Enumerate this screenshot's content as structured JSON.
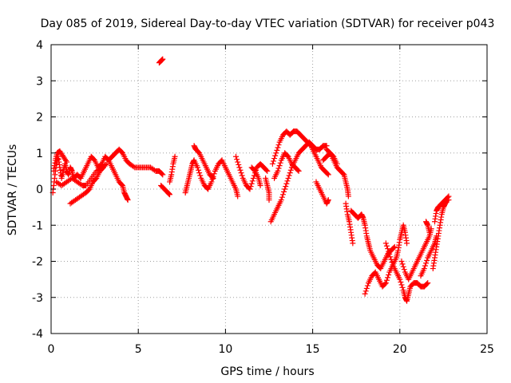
{
  "chart_data": {
    "type": "scatter",
    "title": "Day 085 of 2019, Sidereal Day-to-day VTEC variation (SDTVAR) for receiver p043",
    "xlabel": "GPS time / hours",
    "ylabel": "SDTVAR / TECUs",
    "xlim": [
      0,
      25
    ],
    "ylim": [
      -4,
      4
    ],
    "xticks": [
      0,
      5,
      10,
      15,
      20,
      25
    ],
    "yticks": [
      -4,
      -3,
      -2,
      -1,
      0,
      1,
      2,
      3,
      4
    ],
    "xtick_labels": [
      "0",
      "5",
      "10",
      "15",
      "20",
      "25"
    ],
    "ytick_labels": [
      "-4",
      "-3",
      "-2",
      "-1",
      "0",
      "1",
      "2",
      "3",
      "4"
    ],
    "grid": true,
    "marker": "+",
    "color": "#ff0000",
    "series": [
      {
        "name": "SDTVAR",
        "tracks": [
          [
            [
              0.1,
              -0.1
            ],
            [
              0.2,
              0.3
            ],
            [
              0.3,
              0.7
            ],
            [
              0.4,
              0.9
            ],
            [
              0.5,
              0.6
            ],
            [
              0.6,
              0.3
            ],
            [
              0.7,
              0.5
            ],
            [
              0.8,
              0.7
            ],
            [
              0.9,
              0.5
            ],
            [
              1.0,
              0.4
            ],
            [
              1.1,
              0.6
            ],
            [
              1.2,
              0.5
            ],
            [
              1.3,
              0.3
            ],
            [
              1.5,
              0.4
            ],
            [
              1.7,
              0.3
            ],
            [
              1.9,
              0.5
            ],
            [
              2.1,
              0.7
            ],
            [
              2.3,
              0.9
            ],
            [
              2.5,
              0.8
            ],
            [
              2.7,
              0.6
            ],
            [
              2.9,
              0.7
            ],
            [
              3.1,
              0.9
            ],
            [
              3.3,
              0.8
            ],
            [
              3.5,
              0.9
            ],
            [
              3.7,
              1.0
            ],
            [
              3.9,
              1.1
            ],
            [
              4.1,
              1.0
            ],
            [
              4.3,
              0.8
            ],
            [
              4.5,
              0.7
            ],
            [
              4.8,
              0.6
            ],
            [
              5.1,
              0.6
            ],
            [
              5.4,
              0.6
            ],
            [
              5.7,
              0.6
            ],
            [
              6.0,
              0.5
            ],
            [
              6.2,
              0.5
            ],
            [
              6.4,
              0.4
            ]
          ],
          [
            [
              0.3,
              0.2
            ],
            [
              0.6,
              0.1
            ],
            [
              0.9,
              0.2
            ],
            [
              1.2,
              0.3
            ],
            [
              1.5,
              0.2
            ],
            [
              1.8,
              0.1
            ],
            [
              2.0,
              0.1
            ],
            [
              2.3,
              0.3
            ],
            [
              2.6,
              0.5
            ],
            [
              2.9,
              0.6
            ],
            [
              3.2,
              0.7
            ]
          ],
          [
            [
              1.1,
              -0.4
            ],
            [
              1.4,
              -0.3
            ],
            [
              1.7,
              -0.2
            ],
            [
              2.0,
              -0.1
            ],
            [
              2.2,
              0.0
            ],
            [
              2.4,
              0.2
            ],
            [
              2.6,
              0.3
            ],
            [
              2.8,
              0.5
            ],
            [
              3.0,
              0.6
            ]
          ],
          [
            [
              3.3,
              0.8
            ],
            [
              3.5,
              0.6
            ],
            [
              3.7,
              0.4
            ],
            [
              3.9,
              0.2
            ],
            [
              4.1,
              0.1
            ],
            [
              4.2,
              -0.1
            ],
            [
              4.3,
              -0.2
            ],
            [
              4.4,
              -0.3
            ]
          ],
          [
            [
              0.15,
              0.5
            ],
            [
              0.25,
              0.8
            ],
            [
              0.35,
              1.0
            ],
            [
              0.5,
              1.05
            ],
            [
              0.7,
              0.9
            ],
            [
              0.9,
              0.75
            ]
          ],
          [
            [
              6.2,
              3.5
            ],
            [
              6.3,
              3.55
            ],
            [
              6.4,
              3.6
            ]
          ],
          [
            [
              6.3,
              0.1
            ],
            [
              6.5,
              0.0
            ],
            [
              6.7,
              -0.1
            ],
            [
              6.8,
              -0.15
            ]
          ],
          [
            [
              6.8,
              0.2
            ],
            [
              6.9,
              0.4
            ],
            [
              7.0,
              0.7
            ],
            [
              7.1,
              0.9
            ]
          ],
          [
            [
              7.7,
              -0.1
            ],
            [
              7.8,
              0.1
            ],
            [
              7.9,
              0.3
            ],
            [
              8.0,
              0.5
            ],
            [
              8.1,
              0.7
            ],
            [
              8.2,
              0.8
            ],
            [
              8.4,
              0.6
            ],
            [
              8.6,
              0.3
            ],
            [
              8.8,
              0.1
            ],
            [
              9.0,
              0.0
            ],
            [
              9.2,
              0.2
            ],
            [
              9.4,
              0.5
            ],
            [
              9.6,
              0.7
            ],
            [
              9.8,
              0.8
            ],
            [
              10.0,
              0.6
            ],
            [
              10.2,
              0.4
            ],
            [
              10.4,
              0.2
            ],
            [
              10.6,
              0.0
            ],
            [
              10.7,
              -0.2
            ]
          ],
          [
            [
              8.2,
              1.2
            ],
            [
              8.3,
              1.1
            ],
            [
              8.5,
              1.0
            ],
            [
              8.7,
              0.8
            ],
            [
              8.9,
              0.6
            ],
            [
              9.1,
              0.4
            ],
            [
              9.3,
              0.3
            ]
          ],
          [
            [
              10.6,
              0.9
            ],
            [
              10.8,
              0.6
            ],
            [
              11.0,
              0.3
            ],
            [
              11.2,
              0.1
            ],
            [
              11.4,
              0.0
            ],
            [
              11.6,
              0.3
            ],
            [
              11.8,
              0.6
            ],
            [
              12.0,
              0.7
            ],
            [
              12.2,
              0.6
            ],
            [
              12.4,
              0.5
            ]
          ],
          [
            [
              11.5,
              0.6
            ],
            [
              11.7,
              0.5
            ],
            [
              11.9,
              0.3
            ],
            [
              12.0,
              0.1
            ]
          ],
          [
            [
              12.3,
              0.3
            ],
            [
              12.4,
              0.1
            ],
            [
              12.5,
              -0.1
            ],
            [
              12.5,
              -0.3
            ]
          ],
          [
            [
              12.6,
              -0.9
            ],
            [
              12.8,
              -0.7
            ],
            [
              13.0,
              -0.5
            ],
            [
              13.2,
              -0.3
            ],
            [
              13.4,
              0.0
            ],
            [
              13.6,
              0.3
            ],
            [
              13.8,
              0.6
            ],
            [
              14.0,
              0.8
            ],
            [
              14.2,
              1.0
            ],
            [
              14.4,
              1.1
            ],
            [
              14.6,
              1.2
            ],
            [
              14.8,
              1.3
            ],
            [
              15.0,
              1.2
            ],
            [
              15.2,
              1.1
            ],
            [
              15.4,
              1.1
            ],
            [
              15.6,
              1.2
            ],
            [
              15.8,
              1.2
            ]
          ],
          [
            [
              12.7,
              0.7
            ],
            [
              12.9,
              1.0
            ],
            [
              13.1,
              1.3
            ],
            [
              13.3,
              1.5
            ],
            [
              13.5,
              1.6
            ],
            [
              13.7,
              1.5
            ],
            [
              13.9,
              1.6
            ],
            [
              14.1,
              1.6
            ],
            [
              14.3,
              1.5
            ],
            [
              14.5,
              1.4
            ],
            [
              14.7,
              1.3
            ],
            [
              14.9,
              1.2
            ],
            [
              15.1,
              1.0
            ],
            [
              15.3,
              0.8
            ],
            [
              15.5,
              0.6
            ],
            [
              15.7,
              0.5
            ],
            [
              15.9,
              0.4
            ]
          ],
          [
            [
              12.8,
              0.3
            ],
            [
              13.0,
              0.5
            ],
            [
              13.2,
              0.8
            ],
            [
              13.4,
              1.0
            ],
            [
              13.6,
              0.9
            ],
            [
              13.8,
              0.7
            ],
            [
              14.0,
              0.6
            ],
            [
              14.2,
              0.5
            ]
          ],
          [
            [
              15.2,
              0.2
            ],
            [
              15.4,
              0.0
            ],
            [
              15.6,
              -0.2
            ],
            [
              15.8,
              -0.4
            ],
            [
              15.9,
              -0.3
            ]
          ],
          [
            [
              15.8,
              1.1
            ],
            [
              16.0,
              1.0
            ],
            [
              16.2,
              0.8
            ],
            [
              16.4,
              0.6
            ],
            [
              16.6,
              0.5
            ],
            [
              16.8,
              0.4
            ],
            [
              16.9,
              0.2
            ],
            [
              17.0,
              0.0
            ],
            [
              17.05,
              -0.2
            ]
          ],
          [
            [
              15.6,
              0.8
            ],
            [
              15.8,
              0.9
            ],
            [
              16.0,
              1.0
            ],
            [
              16.2,
              0.9
            ],
            [
              16.4,
              0.7
            ]
          ],
          [
            [
              16.9,
              -0.4
            ],
            [
              17.0,
              -0.7
            ],
            [
              17.1,
              -0.9
            ],
            [
              17.2,
              -1.2
            ],
            [
              17.3,
              -1.5
            ]
          ],
          [
            [
              17.2,
              -0.6
            ],
            [
              17.4,
              -0.7
            ],
            [
              17.6,
              -0.8
            ],
            [
              17.8,
              -0.7
            ],
            [
              17.9,
              -0.8
            ],
            [
              18.0,
              -1.0
            ],
            [
              18.1,
              -1.3
            ],
            [
              18.2,
              -1.5
            ],
            [
              18.3,
              -1.7
            ],
            [
              18.5,
              -1.9
            ],
            [
              18.7,
              -2.1
            ],
            [
              18.9,
              -2.2
            ],
            [
              19.1,
              -2.0
            ],
            [
              19.3,
              -1.8
            ],
            [
              19.5,
              -1.7
            ],
            [
              19.7,
              -1.6
            ]
          ],
          [
            [
              18.0,
              -2.9
            ],
            [
              18.2,
              -2.6
            ],
            [
              18.4,
              -2.4
            ],
            [
              18.6,
              -2.3
            ],
            [
              18.8,
              -2.5
            ],
            [
              19.0,
              -2.7
            ],
            [
              19.2,
              -2.6
            ],
            [
              19.4,
              -2.3
            ],
            [
              19.6,
              -2.1
            ],
            [
              19.8,
              -1.9
            ],
            [
              19.9,
              -1.7
            ],
            [
              20.0,
              -1.4
            ],
            [
              20.1,
              -1.2
            ],
            [
              20.2,
              -1.0
            ],
            [
              20.3,
              -1.2
            ],
            [
              20.4,
              -1.5
            ]
          ],
          [
            [
              19.2,
              -1.5
            ],
            [
              19.4,
              -1.8
            ],
            [
              19.6,
              -2.1
            ],
            [
              19.8,
              -2.3
            ],
            [
              20.0,
              -2.5
            ],
            [
              20.2,
              -2.8
            ],
            [
              20.3,
              -3.0
            ],
            [
              20.4,
              -3.1
            ],
            [
              20.5,
              -2.9
            ],
            [
              20.6,
              -2.7
            ],
            [
              20.8,
              -2.6
            ],
            [
              21.0,
              -2.6
            ],
            [
              21.2,
              -2.7
            ],
            [
              21.4,
              -2.7
            ],
            [
              21.6,
              -2.6
            ]
          ],
          [
            [
              20.1,
              -2.0
            ],
            [
              20.3,
              -2.3
            ],
            [
              20.5,
              -2.5
            ],
            [
              20.7,
              -2.3
            ],
            [
              20.9,
              -2.1
            ],
            [
              21.1,
              -1.9
            ],
            [
              21.3,
              -1.7
            ],
            [
              21.5,
              -1.5
            ],
            [
              21.7,
              -1.3
            ],
            [
              21.8,
              -1.1
            ]
          ],
          [
            [
              21.2,
              -2.4
            ],
            [
              21.4,
              -2.2
            ],
            [
              21.6,
              -1.9
            ],
            [
              21.8,
              -1.7
            ],
            [
              22.0,
              -1.5
            ],
            [
              22.1,
              -1.3
            ]
          ],
          [
            [
              21.9,
              -2.2
            ],
            [
              22.0,
              -1.9
            ],
            [
              22.1,
              -1.6
            ],
            [
              22.2,
              -1.3
            ],
            [
              22.3,
              -1.0
            ],
            [
              22.4,
              -0.7
            ],
            [
              22.5,
              -0.5
            ],
            [
              22.6,
              -0.4
            ],
            [
              22.7,
              -0.3
            ],
            [
              22.8,
              -0.3
            ]
          ],
          [
            [
              22.0,
              -0.9
            ],
            [
              22.1,
              -0.6
            ],
            [
              22.2,
              -0.5
            ],
            [
              22.4,
              -0.4
            ],
            [
              22.6,
              -0.3
            ],
            [
              22.8,
              -0.2
            ]
          ],
          [
            [
              21.5,
              -0.9
            ],
            [
              21.6,
              -1.0
            ],
            [
              21.7,
              -1.2
            ]
          ]
        ]
      }
    ]
  }
}
